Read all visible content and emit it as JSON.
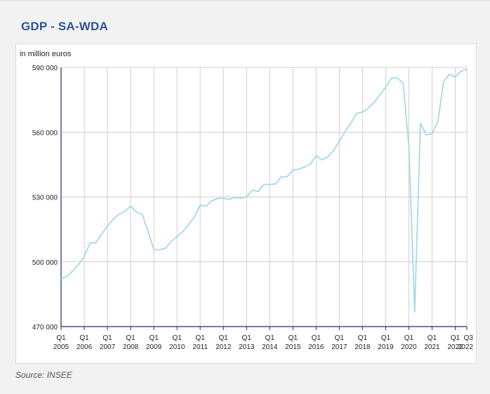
{
  "header": {
    "title": "GDP - SA-WDA"
  },
  "footer": {
    "source": "Source: INSEE"
  },
  "chart_data": {
    "type": "line",
    "title": "",
    "ylabel": "in million euros",
    "ylim": [
      470000,
      590000
    ],
    "yticks": [
      {
        "value": 470000,
        "label": "470 000"
      },
      {
        "value": 500000,
        "label": "500 000"
      },
      {
        "value": 530000,
        "label": "530 000"
      },
      {
        "value": 560000,
        "label": "560 000"
      },
      {
        "value": 590000,
        "label": "590 000"
      }
    ],
    "xticks": [
      {
        "quarter": "Q1",
        "year": "2005"
      },
      {
        "quarter": "Q1",
        "year": "2006"
      },
      {
        "quarter": "Q1",
        "year": "2007"
      },
      {
        "quarter": "Q1",
        "year": "2008"
      },
      {
        "quarter": "Q1",
        "year": "2009"
      },
      {
        "quarter": "Q1",
        "year": "2010"
      },
      {
        "quarter": "Q1",
        "year": "2011"
      },
      {
        "quarter": "Q1",
        "year": "2012"
      },
      {
        "quarter": "Q1",
        "year": "2013"
      },
      {
        "quarter": "Q1",
        "year": "2014"
      },
      {
        "quarter": "Q1",
        "year": "2015"
      },
      {
        "quarter": "Q1",
        "year": "2016"
      },
      {
        "quarter": "Q1",
        "year": "2017"
      },
      {
        "quarter": "Q1",
        "year": "2018"
      },
      {
        "quarter": "Q1",
        "year": "2019"
      },
      {
        "quarter": "Q1",
        "year": "2020"
      },
      {
        "quarter": "Q1",
        "year": "2021"
      },
      {
        "quarter": "Q1",
        "year": "2022"
      },
      {
        "quarter": "Q3",
        "year": "2022"
      }
    ],
    "grid": true,
    "series": [
      {
        "color": "#a3dae9",
        "points": [
          [
            "2005-Q1",
            492200
          ],
          [
            "2005-Q2",
            493200
          ],
          [
            "2005-Q3",
            495800
          ],
          [
            "2005-Q4",
            498600
          ],
          [
            "2006-Q1",
            502500
          ],
          [
            "2006-Q2",
            508700
          ],
          [
            "2006-Q3",
            508800
          ],
          [
            "2006-Q4",
            512800
          ],
          [
            "2007-Q1",
            516500
          ],
          [
            "2007-Q2",
            519800
          ],
          [
            "2007-Q3",
            522000
          ],
          [
            "2007-Q4",
            523300
          ],
          [
            "2008-Q1",
            525800
          ],
          [
            "2008-Q2",
            523000
          ],
          [
            "2008-Q3",
            522000
          ],
          [
            "2008-Q4",
            514000
          ],
          [
            "2009-Q1",
            505600
          ],
          [
            "2009-Q2",
            505600
          ],
          [
            "2009-Q3",
            506200
          ],
          [
            "2009-Q4",
            509500
          ],
          [
            "2010-Q1",
            511600
          ],
          [
            "2010-Q2",
            514000
          ],
          [
            "2010-Q3",
            517200
          ],
          [
            "2010-Q4",
            520700
          ],
          [
            "2011-Q1",
            526200
          ],
          [
            "2011-Q2",
            525700
          ],
          [
            "2011-Q3",
            528300
          ],
          [
            "2011-Q4",
            529300
          ],
          [
            "2012-Q1",
            529400
          ],
          [
            "2012-Q2",
            528900
          ],
          [
            "2012-Q3",
            529700
          ],
          [
            "2012-Q4",
            529500
          ],
          [
            "2013-Q1",
            530000
          ],
          [
            "2013-Q2",
            533200
          ],
          [
            "2013-Q3",
            532500
          ],
          [
            "2013-Q4",
            535800
          ],
          [
            "2014-Q1",
            535800
          ],
          [
            "2014-Q2",
            536000
          ],
          [
            "2014-Q3",
            539400
          ],
          [
            "2014-Q4",
            539400
          ],
          [
            "2015-Q1",
            542400
          ],
          [
            "2015-Q2",
            542900
          ],
          [
            "2015-Q3",
            543900
          ],
          [
            "2015-Q4",
            545300
          ],
          [
            "2016-Q1",
            549200
          ],
          [
            "2016-Q2",
            547200
          ],
          [
            "2016-Q3",
            548500
          ],
          [
            "2016-Q4",
            551500
          ],
          [
            "2017-Q1",
            555800
          ],
          [
            "2017-Q2",
            560300
          ],
          [
            "2017-Q3",
            564300
          ],
          [
            "2017-Q4",
            568800
          ],
          [
            "2018-Q1",
            569300
          ],
          [
            "2018-Q2",
            571200
          ],
          [
            "2018-Q3",
            573800
          ],
          [
            "2018-Q4",
            577300
          ],
          [
            "2019-Q1",
            580900
          ],
          [
            "2019-Q2",
            585000
          ],
          [
            "2019-Q3",
            585200
          ],
          [
            "2019-Q4",
            582700
          ],
          [
            "2020-Q1",
            553500
          ],
          [
            "2020-Q2",
            476700
          ],
          [
            "2020-Q3",
            564200
          ],
          [
            "2020-Q4",
            558800
          ],
          [
            "2021-Q1",
            559300
          ],
          [
            "2021-Q2",
            565000
          ],
          [
            "2021-Q3",
            583500
          ],
          [
            "2021-Q4",
            586800
          ],
          [
            "2022-Q1",
            585600
          ],
          [
            "2022-Q2",
            588300
          ],
          [
            "2022-Q3",
            589200
          ]
        ]
      }
    ]
  }
}
